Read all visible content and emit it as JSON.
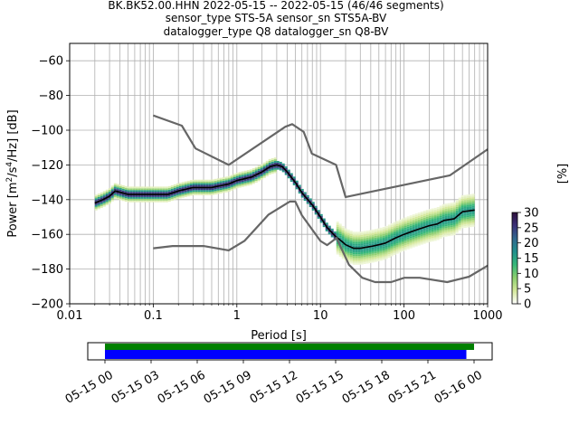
{
  "header": {
    "line1": "BK.BK52.00.HHN   2022-05-15 -- 2022-05-15  (46/46 segments)",
    "line2": "sensor_type STS-5A sensor_sn STS5A-BV",
    "line3": "datalogger_type Q8 datalogger_sn Q8-BV"
  },
  "chart_data": [
    {
      "type": "heatmap",
      "title": "BK.BK52.00.HHN   2022-05-15 -- 2022-05-15  (46/46 segments)",
      "xlabel": "Period [s]",
      "ylabel": "Power [m²/s⁴/Hz] [dB]",
      "xscale": "log",
      "xlim": [
        0.01,
        1000
      ],
      "ylim": [
        -200,
        -50
      ],
      "grid": true,
      "x_tick_labels": [
        "0.01",
        "0.1",
        "1",
        "10",
        "100",
        "1000"
      ],
      "y_ticks": [
        -60,
        -80,
        -100,
        -120,
        -140,
        -160,
        -180,
        -200
      ],
      "colorbar": {
        "label": "[%]",
        "range": [
          0,
          30
        ],
        "ticks": [
          0,
          5,
          10,
          15,
          20,
          25,
          30
        ],
        "colors": [
          "#ffffff",
          "#d4e89a",
          "#8ccf6f",
          "#35b779",
          "#21908d",
          "#31688e",
          "#3b3079",
          "#2d0f3a"
        ]
      },
      "series": [
        {
          "name": "mode",
          "color": "#000000",
          "x": [
            0.02,
            0.025,
            0.03,
            0.035,
            0.05,
            0.08,
            0.1,
            0.15,
            0.2,
            0.3,
            0.5,
            0.8,
            1,
            1.5,
            2,
            2.5,
            3,
            3.5,
            4,
            5,
            6,
            8,
            10,
            12,
            15,
            18,
            20,
            25,
            30,
            40,
            50,
            60,
            80,
            100,
            130,
            150,
            200,
            250,
            300,
            400,
            500,
            700
          ],
          "y": [
            -142,
            -140,
            -138,
            -135,
            -137,
            -137,
            -137,
            -137,
            -135,
            -133,
            -133,
            -131,
            -129,
            -127,
            -124,
            -121,
            -120,
            -121,
            -124,
            -130,
            -136,
            -143,
            -150,
            -156,
            -161,
            -164,
            -166,
            -168,
            -168,
            -167,
            -166,
            -165,
            -162,
            -160,
            -158,
            -157,
            -155,
            -154,
            -152,
            -151,
            -147,
            -146
          ]
        },
        {
          "name": "NHNM",
          "color": "#666666",
          "x": [
            0.1,
            0.22,
            0.32,
            0.8,
            3.8,
            4.6,
            6.3,
            7.9,
            15.4,
            20,
            354.8,
            1000
          ],
          "y": [
            -91.5,
            -97.4,
            -110.5,
            -120,
            -98,
            -96.5,
            -101,
            -113.5,
            -120,
            -138.5,
            -126,
            -111
          ]
        },
        {
          "name": "NLNM",
          "color": "#666666",
          "x": [
            0.1,
            0.17,
            0.4,
            0.8,
            1.24,
            2.4,
            4.3,
            5,
            6,
            10,
            12,
            15.6,
            21.9,
            31.6,
            45,
            70,
            101,
            154,
            328,
            600,
            1000
          ],
          "y": [
            -168,
            -166.7,
            -166.7,
            -169.2,
            -163.7,
            -148.6,
            -141.1,
            -141.1,
            -149,
            -163.8,
            -166.2,
            -162.1,
            -177.5,
            -185,
            -187.5,
            -187.5,
            -185,
            -185,
            -187.5,
            -184.4,
            -178
          ]
        }
      ]
    },
    {
      "type": "timeline",
      "x_tick_labels": [
        "05-15 00",
        "05-15 03",
        "05-15 06",
        "05-15 09",
        "05-15 12",
        "05-15 15",
        "05-15 18",
        "05-15 21",
        "05-16 00"
      ],
      "series": [
        {
          "name": "coverage",
          "color": "#008000",
          "start_hour": 0,
          "end_hour": 24
        },
        {
          "name": "psd_segments",
          "color": "#0000ff",
          "start_hour": 0,
          "end_hour": 23.5
        }
      ]
    }
  ]
}
